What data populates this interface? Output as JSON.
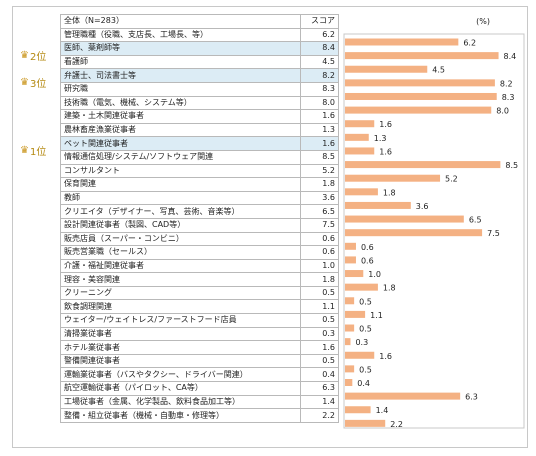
{
  "table": {
    "header_name": "全体（N=283）",
    "header_score": "スコア",
    "percent_unit": "(%)"
  },
  "ranks": [
    {
      "row": 1,
      "label": "2位"
    },
    {
      "row": 3,
      "label": "3位"
    },
    {
      "row": 8,
      "label": "1位"
    }
  ],
  "highlight_rows": [
    1,
    3,
    8
  ],
  "colors": {
    "bar": "#f4b183",
    "highlight": "#dcecf5",
    "rank": "#b58a12"
  },
  "icons": {
    "rank": "trophy-icon"
  },
  "chart_data": {
    "type": "bar",
    "orientation": "horizontal",
    "categories": [
      "管理職種（役職、支店長、工場長、等）",
      "医師、薬剤師等",
      "看護師",
      "弁護士、司法書士等",
      "研究職",
      "技術職（電気、機械、システム等）",
      "建築・土木関連従事者",
      "農林畜産漁業従事者",
      "ペット関連従事者",
      "情報通信処理/システム/ソフトウェア関連",
      "コンサルタント",
      "保育関連",
      "教師",
      "クリエイタ（デザイナー、写真、芸術、音楽等）",
      "設計関連従事者（製図、CAD等）",
      "販売店員（スーパー・コンビニ）",
      "販売営業職（セールス）",
      "介護・福祉関連従事者",
      "理容・美容関連",
      "クリーニング",
      "飲食調理関連",
      "ウェイター/ウェイトレス/ファーストフード店員",
      "清掃業従事者",
      "ホテル業従事者",
      "警備関連従事者",
      "運輸業従事者（バスやタクシー、ドライバー関連）",
      "航空運輸従事者（パイロット、CA等）",
      "工場従事者（金属、化学製品、飲料食品加工等）",
      "整備・組立従事者（機械・自動車・修理等）"
    ],
    "values": [
      6.2,
      8.4,
      4.5,
      8.2,
      8.3,
      8.0,
      1.6,
      1.3,
      1.6,
      8.5,
      5.2,
      1.8,
      3.6,
      6.5,
      7.5,
      0.6,
      0.6,
      1.0,
      1.8,
      0.5,
      1.1,
      0.5,
      0.3,
      1.6,
      0.5,
      0.4,
      6.3,
      1.4,
      2.2
    ],
    "value_labels": [
      "6.2",
      "8.4",
      "4.5",
      "8.2",
      "8.3",
      "8.0",
      "1.6",
      "1.3",
      "1.6",
      "8.5",
      "5.2",
      "1.8",
      "3.6",
      "6.5",
      "7.5",
      "0.6",
      "0.6",
      "1.0",
      "1.8",
      "0.5",
      "1.1",
      "0.5",
      "0.3",
      "1.6",
      "0.5",
      "0.4",
      "6.3",
      "1.4",
      "2.2"
    ],
    "xlim": [
      0,
      9.3
    ]
  }
}
